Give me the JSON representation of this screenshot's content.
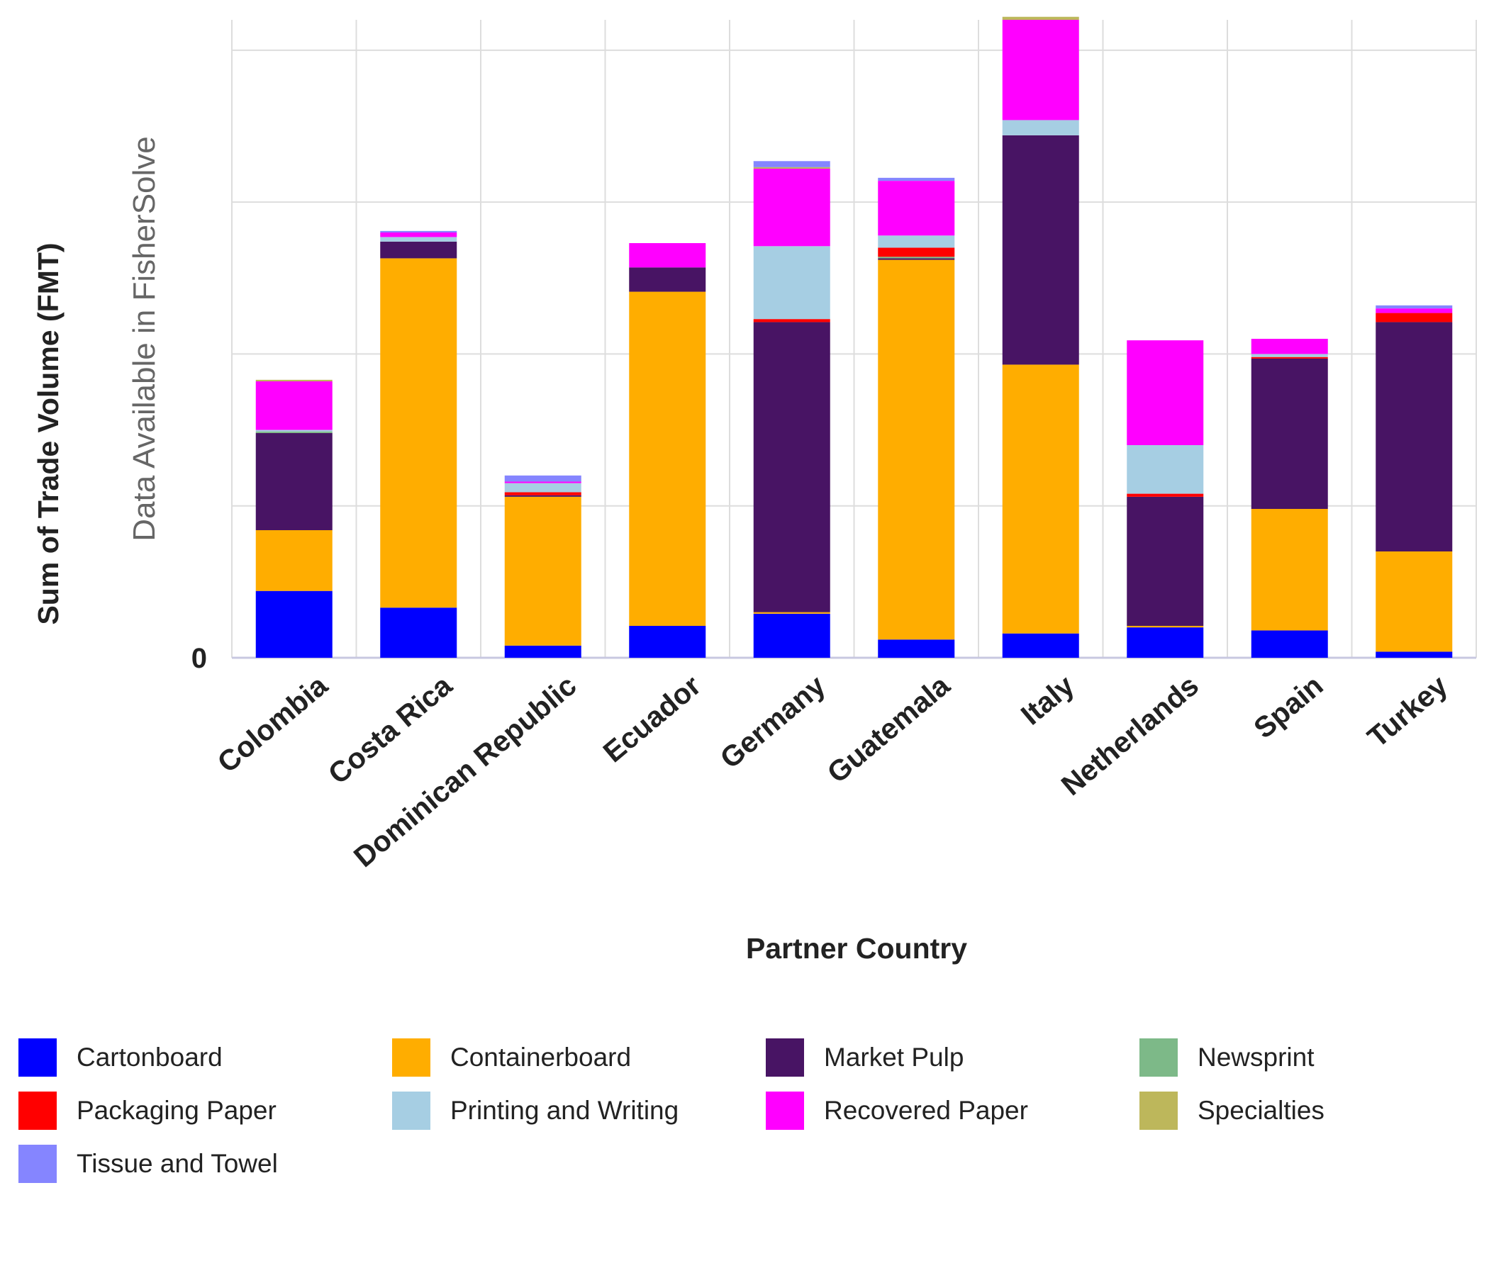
{
  "chart_data": {
    "type": "bar",
    "stacked": true,
    "title": "",
    "xlabel": "Partner Country",
    "ylabel": "Sum of Trade Volume (FMT)",
    "watermark": "Data Available in FisherSolve",
    "ytick_labels": [
      "0"
    ],
    "ylim": [
      0,
      4.2
    ],
    "grid": true,
    "legend_placement": "bottom",
    "categories": [
      "Colombia",
      "Costa Rica",
      "Dominican Republic",
      "Ecuador",
      "Germany",
      "Guatemala",
      "Italy",
      "Netherlands",
      "Spain",
      "Turkey"
    ],
    "series": [
      {
        "name": "Cartonboard",
        "color": "#0000ff",
        "values": [
          0.44,
          0.33,
          0.08,
          0.21,
          0.29,
          0.12,
          0.16,
          0.2,
          0.18,
          0.04
        ]
      },
      {
        "name": "Containerboard",
        "color": "#ffad00",
        "values": [
          0.4,
          2.3,
          0.98,
          2.2,
          0.01,
          2.5,
          1.77,
          0.01,
          0.8,
          0.66
        ]
      },
      {
        "name": "Market Pulp",
        "color": "#481464",
        "values": [
          0.64,
          0.11,
          0.01,
          0.16,
          1.91,
          0.01,
          1.51,
          0.85,
          0.99,
          1.51
        ]
      },
      {
        "name": "Newsprint",
        "color": "#7db988",
        "values": [
          0.01,
          0,
          0,
          0,
          0,
          0.01,
          0,
          0,
          0,
          0
        ]
      },
      {
        "name": "Packaging Paper",
        "color": "#ff0000",
        "values": [
          0,
          0,
          0.02,
          0,
          0.02,
          0.06,
          0,
          0.02,
          0.01,
          0.06
        ]
      },
      {
        "name": "Printing and Writing",
        "color": "#a6cee3",
        "values": [
          0.01,
          0.03,
          0.06,
          0,
          0.48,
          0.08,
          0.1,
          0.32,
          0.02,
          0
        ]
      },
      {
        "name": "Recovered Paper",
        "color": "#ff00ff",
        "values": [
          0.32,
          0.03,
          0.01,
          0.16,
          0.51,
          0.36,
          0.66,
          0.69,
          0.1,
          0.03
        ]
      },
      {
        "name": "Specialties",
        "color": "#bdb75b",
        "values": [
          0.01,
          0,
          0,
          0,
          0.01,
          0,
          0.02,
          0,
          0,
          0
        ]
      },
      {
        "name": "Tissue and Towel",
        "color": "#8585ff",
        "values": [
          0,
          0.01,
          0.04,
          0,
          0.04,
          0.02,
          0,
          0,
          0,
          0.02
        ]
      }
    ]
  }
}
